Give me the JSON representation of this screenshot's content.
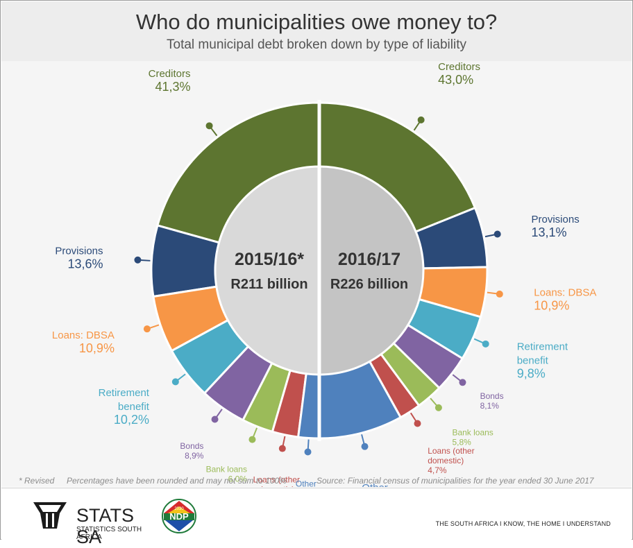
{
  "header": {
    "title": "Who do municipalities owe money to?",
    "subtitle": "Total municipal debt broken down by type of liability"
  },
  "footnotes": {
    "revised": "* Revised",
    "rounding": "Percentages have been rounded and may not sum to 100%",
    "source": "Source: Financial census of municipalities for the year ended 30 June 2017"
  },
  "footer": {
    "logo_text": "STATS SA",
    "logo_subtext": "STATISTICS SOUTH AFRICA",
    "ndp_text": "NDP",
    "ndp_year": "2030",
    "tagline": "THE SOUTH AFRICA I KNOW, THE HOME I UNDERSTAND"
  },
  "colors": {
    "Creditors": "#5d7530",
    "Provisions": "#2b4a78",
    "Loans: DBSA": "#f79646",
    "Retirement benefit": "#4bacc6",
    "Bonds": "#8064a2",
    "Bank loans": "#9bbb59",
    "Loans (other domestic)": "#c0504d",
    "Other": "#4f81bd"
  },
  "chart_data": {
    "type": "pie",
    "style": "split donut (two half-rings)",
    "categories": [
      "Creditors",
      "Provisions",
      "Loans: DBSA",
      "Retirement benefit",
      "Bonds",
      "Bank loans",
      "Loans (other domestic)",
      "Other"
    ],
    "series": [
      {
        "name": "2015/16*",
        "total": "R211 billion",
        "side": "left",
        "values": [
          41.3,
          13.6,
          10.9,
          10.2,
          8.9,
          6.0,
          5.0,
          4.0
        ],
        "labels": [
          "Creditors\n41,3%",
          "Provisions\n13,6%",
          "Loans: DBSA\n10,9%",
          "Retirement\nbenefit\n10,2%",
          "Bonds\n8,9%",
          "Bank loans\n6,0%",
          "Loans (other\ndomestic)\n5,0%",
          "Other\n4,0%"
        ]
      },
      {
        "name": "2016/17",
        "total": "R226 billion",
        "side": "right",
        "values": [
          43.0,
          13.1,
          10.9,
          9.8,
          8.1,
          5.8,
          4.7,
          18.3
        ],
        "labels": [
          "Creditors\n43,0%",
          "Provisions\n13,1%",
          "Loans: DBSA\n10,9%",
          "Retirement\nbenefit\n9,8%",
          "Bonds\n8,1%",
          "Bank loans\n5,8%",
          "Loans (other\ndomestic)\n4,7%",
          "Other\n18,3%"
        ]
      }
    ]
  }
}
